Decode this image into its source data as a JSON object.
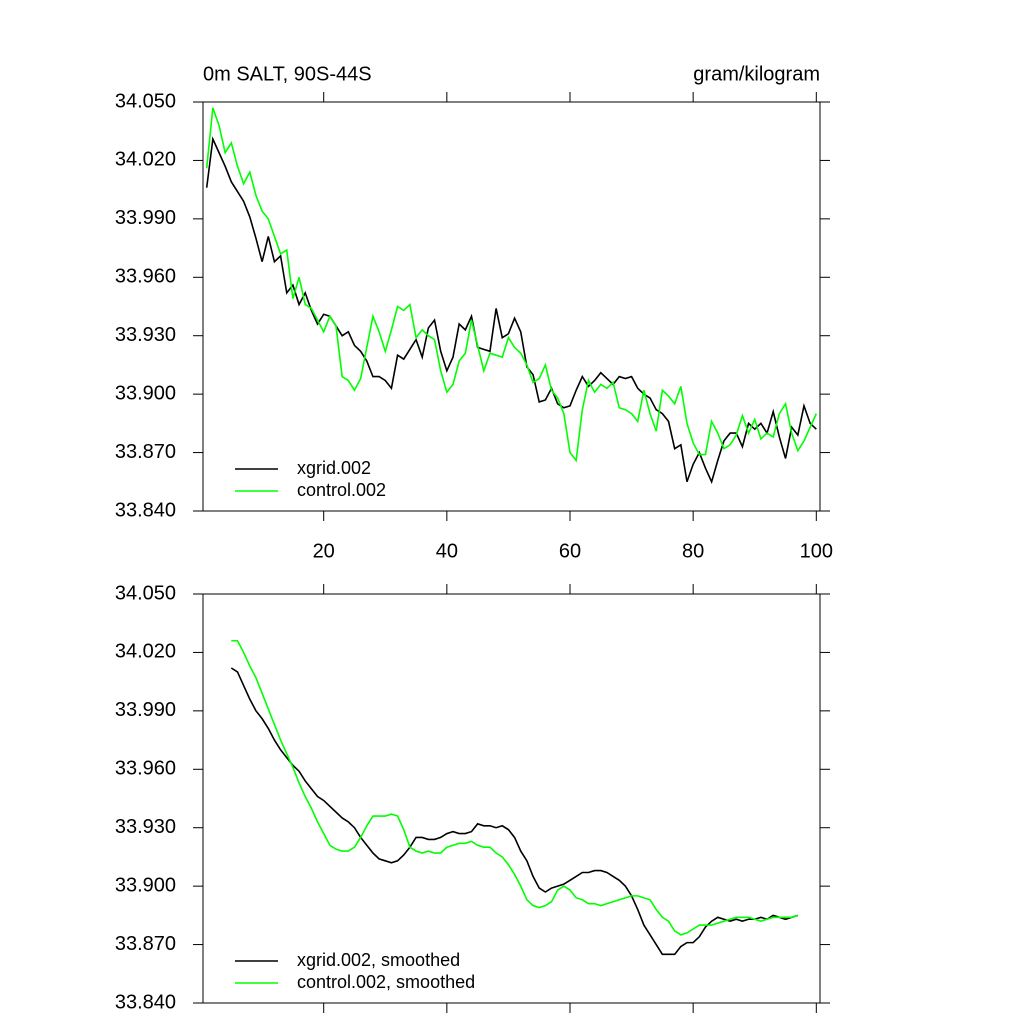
{
  "chart_data": [
    {
      "type": "line",
      "title": "0m SALT, 90S-44S",
      "right_title": "gram/kilogram",
      "x": [
        1,
        2,
        3,
        4,
        5,
        6,
        7,
        8,
        9,
        10,
        11,
        12,
        13,
        14,
        15,
        16,
        17,
        18,
        19,
        20,
        21,
        22,
        23,
        24,
        25,
        26,
        27,
        28,
        29,
        30,
        31,
        32,
        33,
        34,
        35,
        36,
        37,
        38,
        39,
        40,
        41,
        42,
        43,
        44,
        45,
        46,
        47,
        48,
        49,
        50,
        51,
        52,
        53,
        54,
        55,
        56,
        57,
        58,
        59,
        60,
        61,
        62,
        63,
        64,
        65,
        66,
        67,
        68,
        69,
        70,
        71,
        72,
        73,
        74,
        75,
        76,
        77,
        78,
        79,
        80,
        81,
        82,
        83,
        84,
        85,
        86,
        87,
        88,
        89,
        90,
        91,
        92,
        93,
        94,
        95,
        96,
        97,
        98,
        99,
        100
      ],
      "xlim": [
        0.4,
        100.6
      ],
      "xticks": [
        20,
        40,
        60,
        80,
        100
      ],
      "ylim": [
        33.84,
        34.05
      ],
      "yticks": [
        {
          "value": 33.84,
          "label": "33.840"
        },
        {
          "value": 33.87,
          "label": "33.870"
        },
        {
          "value": 33.9,
          "label": "33.900"
        },
        {
          "value": 33.93,
          "label": "33.930"
        },
        {
          "value": 33.96,
          "label": "33.960"
        },
        {
          "value": 33.99,
          "label": "33.990"
        },
        {
          "value": 34.02,
          "label": "34.020"
        },
        {
          "value": 34.05,
          "label": "34.050"
        }
      ],
      "series": [
        {
          "name": "xgrid.002",
          "color": "#000000",
          "values": [
            34.006,
            34.031,
            34.024,
            34.017,
            34.009,
            34.004,
            33.999,
            33.991,
            33.98,
            33.968,
            33.981,
            33.968,
            33.971,
            33.952,
            33.956,
            33.946,
            33.952,
            33.943,
            33.936,
            33.941,
            33.94,
            33.935,
            33.93,
            33.932,
            33.925,
            33.922,
            33.917,
            33.909,
            33.909,
            33.907,
            33.903,
            33.92,
            33.918,
            33.923,
            33.928,
            33.919,
            33.934,
            33.938,
            33.922,
            33.912,
            33.919,
            33.936,
            33.933,
            33.94,
            33.924,
            33.923,
            33.922,
            33.944,
            33.929,
            33.931,
            33.939,
            33.932,
            33.914,
            33.91,
            33.896,
            33.897,
            33.903,
            33.895,
            33.893,
            33.894,
            33.902,
            33.909,
            33.904,
            33.907,
            33.911,
            33.908,
            33.905,
            33.909,
            33.908,
            33.909,
            33.903,
            33.9,
            33.898,
            33.892,
            33.89,
            33.886,
            33.872,
            33.874,
            33.855,
            33.864,
            33.87,
            33.862,
            33.855,
            33.866,
            33.876,
            33.88,
            33.88,
            33.873,
            33.885,
            33.882,
            33.885,
            33.88,
            33.891,
            33.878,
            33.867,
            33.883,
            33.879,
            33.894,
            33.885,
            33.882
          ]
        },
        {
          "name": "control.002",
          "color": "#00ff00",
          "values": [
            34.016,
            34.047,
            34.038,
            34.024,
            34.029,
            34.017,
            34.008,
            34.014,
            34.002,
            33.994,
            33.99,
            33.981,
            33.972,
            33.974,
            33.949,
            33.96,
            33.946,
            33.944,
            33.938,
            33.932,
            33.94,
            33.935,
            33.909,
            33.907,
            33.902,
            33.908,
            33.924,
            33.94,
            33.932,
            33.922,
            33.933,
            33.945,
            33.943,
            33.946,
            33.929,
            33.933,
            33.93,
            33.928,
            33.912,
            33.901,
            33.905,
            33.917,
            33.921,
            33.938,
            33.925,
            33.912,
            33.921,
            33.92,
            33.919,
            33.929,
            33.924,
            33.921,
            33.915,
            33.906,
            33.908,
            33.915,
            33.902,
            33.898,
            33.89,
            33.87,
            33.866,
            33.892,
            33.907,
            33.901,
            33.905,
            33.903,
            33.906,
            33.893,
            33.892,
            33.89,
            33.886,
            33.902,
            33.89,
            33.881,
            33.902,
            33.899,
            33.895,
            33.904,
            33.885,
            33.875,
            33.869,
            33.869,
            33.886,
            33.88,
            33.872,
            33.874,
            33.879,
            33.889,
            33.88,
            33.887,
            33.877,
            33.88,
            33.878,
            33.89,
            33.895,
            33.88,
            33.871,
            33.876,
            33.883,
            33.89
          ]
        }
      ]
    },
    {
      "type": "line",
      "x": [
        1,
        2,
        3,
        4,
        5,
        6,
        7,
        8,
        9,
        10,
        11,
        12,
        13,
        14,
        15,
        16,
        17,
        18,
        19,
        20,
        21,
        22,
        23,
        24,
        25,
        26,
        27,
        28,
        29,
        30,
        31,
        32,
        33,
        34,
        35,
        36,
        37,
        38,
        39,
        40,
        41,
        42,
        43,
        44,
        45,
        46,
        47,
        48,
        49,
        50,
        51,
        52,
        53,
        54,
        55,
        56,
        57,
        58,
        59,
        60,
        61,
        62,
        63,
        64,
        65,
        66,
        67,
        68,
        69,
        70,
        71,
        72,
        73,
        74,
        75,
        76,
        77,
        78,
        79,
        80,
        81,
        82,
        83,
        84,
        85,
        86,
        87,
        88,
        89,
        90,
        91,
        92,
        93,
        94,
        95,
        96,
        97,
        98,
        99,
        100
      ],
      "xlim": [
        0.4,
        100.6
      ],
      "xticks": [
        20,
        40,
        60,
        80,
        100
      ],
      "ylim": [
        33.84,
        34.05
      ],
      "yticks": [
        {
          "value": 33.84,
          "label": "33.840"
        },
        {
          "value": 33.87,
          "label": "33.870"
        },
        {
          "value": 33.9,
          "label": "33.900"
        },
        {
          "value": 33.93,
          "label": "33.930"
        },
        {
          "value": 33.96,
          "label": "33.960"
        },
        {
          "value": 33.99,
          "label": "33.990"
        },
        {
          "value": 34.02,
          "label": "34.020"
        },
        {
          "value": 34.05,
          "label": "34.050"
        }
      ],
      "series": [
        {
          "name": "xgrid.002, smoothed",
          "color": "#000000",
          "values": [
            null,
            null,
            null,
            null,
            34.012,
            34.01,
            34.003,
            33.996,
            33.99,
            33.986,
            33.981,
            33.975,
            33.97,
            33.966,
            33.962,
            33.959,
            33.954,
            33.95,
            33.946,
            33.944,
            33.941,
            33.938,
            33.935,
            33.933,
            33.93,
            33.925,
            33.921,
            33.917,
            33.914,
            33.913,
            33.912,
            33.913,
            33.916,
            33.92,
            33.925,
            33.925,
            33.924,
            33.924,
            33.925,
            33.927,
            33.928,
            33.927,
            33.927,
            33.928,
            33.932,
            33.931,
            33.931,
            33.93,
            33.931,
            33.929,
            33.925,
            33.918,
            33.913,
            33.905,
            33.899,
            33.897,
            33.899,
            33.9,
            33.901,
            33.903,
            33.905,
            33.907,
            33.907,
            33.908,
            33.908,
            33.907,
            33.905,
            33.903,
            33.9,
            33.895,
            33.888,
            33.88,
            33.875,
            33.87,
            33.865,
            33.865,
            33.865,
            33.869,
            33.871,
            33.871,
            33.874,
            33.879,
            33.882,
            33.884,
            33.883,
            33.882,
            33.883,
            33.882,
            33.883,
            33.883,
            33.884,
            33.883,
            33.885,
            33.884,
            33.883,
            33.884,
            33.885,
            null,
            null,
            null
          ]
        },
        {
          "name": "control.002, smoothed",
          "color": "#00ff00",
          "values": [
            null,
            null,
            null,
            null,
            34.026,
            34.026,
            34.02,
            34.013,
            34.007,
            33.999,
            33.991,
            33.983,
            33.975,
            33.968,
            33.961,
            33.953,
            33.946,
            33.94,
            33.933,
            33.927,
            33.921,
            33.919,
            33.918,
            33.918,
            33.92,
            33.925,
            33.931,
            33.936,
            33.936,
            33.936,
            33.937,
            33.936,
            33.929,
            33.92,
            33.918,
            33.917,
            33.918,
            33.917,
            33.917,
            33.92,
            33.921,
            33.922,
            33.922,
            33.923,
            33.921,
            33.92,
            33.92,
            33.917,
            33.915,
            33.911,
            33.906,
            33.9,
            33.893,
            33.89,
            33.889,
            33.89,
            33.892,
            33.898,
            33.9,
            33.898,
            33.894,
            33.893,
            33.891,
            33.891,
            33.89,
            33.891,
            33.892,
            33.893,
            33.894,
            33.895,
            33.895,
            33.894,
            33.893,
            33.888,
            33.884,
            33.882,
            33.877,
            33.875,
            33.876,
            33.878,
            33.88,
            33.88,
            33.88,
            33.881,
            33.882,
            33.883,
            33.884,
            33.884,
            33.884,
            33.883,
            33.882,
            33.883,
            33.884,
            33.884,
            33.884,
            33.884,
            33.885,
            null,
            null,
            null
          ]
        }
      ]
    }
  ]
}
